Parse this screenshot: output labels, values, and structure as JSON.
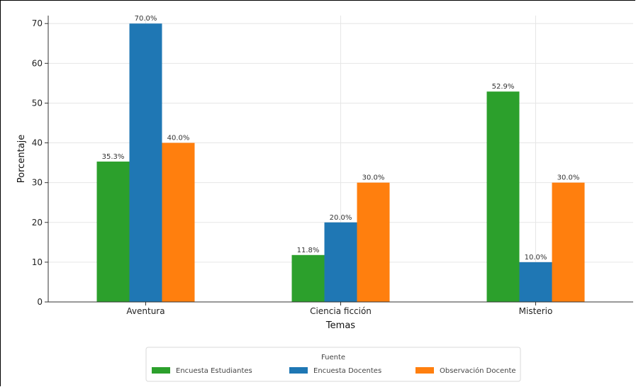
{
  "chart_data": {
    "type": "bar",
    "categories": [
      "Aventura",
      "Ciencia ficción",
      "Misterio"
    ],
    "series": [
      {
        "name": "Encuesta Estudiantes",
        "values": [
          35.3,
          11.8,
          52.9
        ],
        "labels": [
          "35.3%",
          "11.8%",
          "52.9%"
        ],
        "color": "#2ca02c"
      },
      {
        "name": "Encuesta Docentes",
        "values": [
          70.0,
          20.0,
          10.0
        ],
        "labels": [
          "70.0%",
          "20.0%",
          "10.0%"
        ],
        "color": "#1f77b4"
      },
      {
        "name": "Observación Docente",
        "values": [
          40.0,
          30.0,
          30.0
        ],
        "labels": [
          "40.0%",
          "30.0%",
          "30.0%"
        ],
        "color": "#ff7f0e"
      }
    ],
    "xlabel": "Temas",
    "ylabel": "Porcentaje",
    "ylim": [
      0,
      72
    ],
    "yticks": [
      0,
      10,
      20,
      30,
      40,
      50,
      60,
      70
    ],
    "grid": true,
    "legend": {
      "title": "Fuente",
      "placement": "bottom-center"
    }
  }
}
